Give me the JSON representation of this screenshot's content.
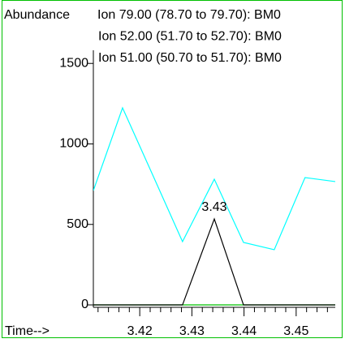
{
  "chart_data": {
    "type": "line",
    "y_label": "Abundance",
    "x_label": "Time-->",
    "x": [
      3.4111,
      3.4167,
      3.4225,
      3.4282,
      3.4343,
      3.4399,
      3.4458,
      3.4517,
      3.4575
    ],
    "series": [
      {
        "name": "Ion 79.00 (78.70 to 79.70): BM0",
        "color": "#000000",
        "values": [
          0,
          0,
          0,
          0,
          534,
          0,
          0,
          0,
          0
        ]
      },
      {
        "name": "Ion 52.00 (51.70 to 52.70): BM0",
        "color": "#00c000",
        "values": [
          0,
          0,
          0,
          0,
          0,
          0,
          0,
          0,
          0
        ]
      },
      {
        "name": "Ion 51.00 (50.70 to 51.70): BM0",
        "color": "#00ffff",
        "values": [
          710,
          1224,
          806,
          393,
          781,
          388,
          343,
          791,
          766
        ]
      }
    ],
    "annotations": [
      {
        "text": "3.43",
        "x": 3.4343,
        "y": 534
      }
    ],
    "xlim": [
      3.4111,
      3.4575
    ],
    "xticks": [
      3.42,
      3.43,
      3.44,
      3.45
    ],
    "xminorticks": [
      3.412,
      3.414,
      3.416,
      3.418,
      3.422,
      3.424,
      3.426,
      3.428,
      3.432,
      3.434,
      3.436,
      3.438,
      3.442,
      3.444,
      3.446,
      3.448,
      3.452,
      3.454,
      3.456
    ],
    "ylim": [
      -15,
      1894
    ],
    "yticks": [
      0,
      500,
      1000,
      1500
    ]
  }
}
